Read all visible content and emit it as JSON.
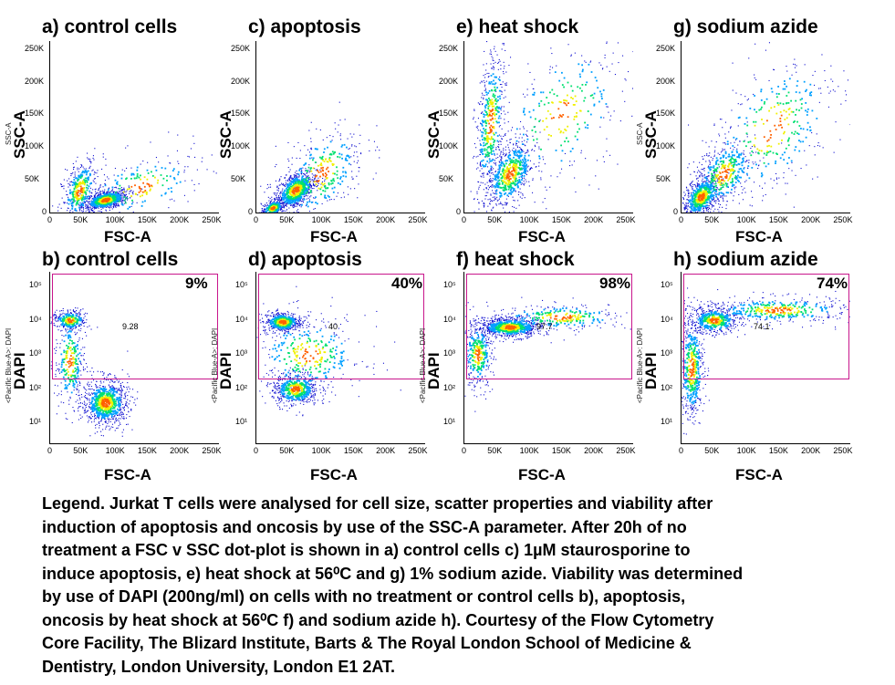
{
  "chart_data": [
    {
      "id": "a",
      "type": "scatter",
      "title": "a) control cells",
      "xlabel": "FSC-A",
      "ylabel": "SSC-A",
      "ylabel_small": "SSC-A",
      "xlim": [
        0,
        262144
      ],
      "ylim": [
        0,
        262144
      ],
      "x_ticks": [
        "0",
        "50K",
        "100K",
        "150K",
        "200K",
        "250K"
      ],
      "y_ticks": [
        "0",
        "50K",
        "100K",
        "150K",
        "200K",
        "250K"
      ],
      "populations": [
        {
          "x": 85000,
          "y": 20000,
          "sx": 18000,
          "sy": 7000,
          "weight": 0.6
        },
        {
          "x": 45000,
          "y": 35000,
          "sx": 14000,
          "sy": 22000,
          "weight": 0.25
        },
        {
          "x": 140000,
          "y": 40000,
          "sx": 50000,
          "sy": 25000,
          "weight": 0.15
        }
      ]
    },
    {
      "id": "c",
      "type": "scatter",
      "title": "c) apoptosis",
      "xlabel": "FSC-A",
      "ylabel": "SSC-A",
      "xlim": [
        0,
        262144
      ],
      "ylim": [
        0,
        262144
      ],
      "x_ticks": [
        "0",
        "50K",
        "100K",
        "150K",
        "200K",
        "250K"
      ],
      "y_ticks": [
        "0",
        "50K",
        "100K",
        "150K",
        "200K",
        "250K"
      ],
      "populations": [
        {
          "x": 60000,
          "y": 35000,
          "sx": 16000,
          "sy": 14000,
          "weight": 0.55
        },
        {
          "x": 25000,
          "y": 8000,
          "sx": 9000,
          "sy": 6000,
          "weight": 0.2
        },
        {
          "x": 100000,
          "y": 60000,
          "sx": 35000,
          "sy": 35000,
          "weight": 0.25
        }
      ]
    },
    {
      "id": "e",
      "type": "scatter",
      "title": "e) heat shock",
      "xlabel": "FSC-A",
      "ylabel": "SSC-A",
      "xlim": [
        0,
        262144
      ],
      "ylim": [
        0,
        262144
      ],
      "x_ticks": [
        "0",
        "50K",
        "100K",
        "150K",
        "200K",
        "250K"
      ],
      "y_ticks": [
        "0",
        "50K",
        "100K",
        "150K",
        "200K",
        "250K"
      ],
      "populations": [
        {
          "x": 70000,
          "y": 60000,
          "sx": 20000,
          "sy": 25000,
          "weight": 0.45
        },
        {
          "x": 40000,
          "y": 140000,
          "sx": 12000,
          "sy": 55000,
          "weight": 0.35
        },
        {
          "x": 150000,
          "y": 150000,
          "sx": 55000,
          "sy": 55000,
          "weight": 0.2
        }
      ]
    },
    {
      "id": "g",
      "type": "scatter",
      "title": "g) sodium azide",
      "xlabel": "FSC-A",
      "ylabel": "SSC-A",
      "ylabel_small": "SSC-A",
      "xlim": [
        0,
        262144
      ],
      "ylim": [
        0,
        262144
      ],
      "x_ticks": [
        "0",
        "50K",
        "100K",
        "150K",
        "200K",
        "250K"
      ],
      "y_ticks": [
        "0",
        "50K",
        "100K",
        "150K",
        "200K",
        "250K"
      ],
      "populations": [
        {
          "x": 30000,
          "y": 25000,
          "sx": 15000,
          "sy": 15000,
          "weight": 0.45
        },
        {
          "x": 65000,
          "y": 60000,
          "sx": 25000,
          "sy": 25000,
          "weight": 0.3
        },
        {
          "x": 140000,
          "y": 130000,
          "sx": 55000,
          "sy": 55000,
          "weight": 0.25
        }
      ]
    },
    {
      "id": "b",
      "type": "scatter",
      "title": "b) control cells",
      "xlabel": "FSC-A",
      "ylabel": "DAPI",
      "ylabel_small": "<Pacific Blue-A>: DAPI",
      "xlim": [
        0,
        262144
      ],
      "ylog": true,
      "x_ticks": [
        "0",
        "50K",
        "100K",
        "150K",
        "200K",
        "250K"
      ],
      "percent": "9%",
      "gate_value": "9.28",
      "populations": [
        {
          "x": 85000,
          "logy": 1.6,
          "sx": 18000,
          "sy": 0.35,
          "weight": 0.6
        },
        {
          "x": 30000,
          "logy": 4.0,
          "sx": 14000,
          "sy": 0.15,
          "weight": 0.2
        },
        {
          "x": 30000,
          "logy": 2.8,
          "sx": 12000,
          "sy": 0.7,
          "weight": 0.2
        }
      ]
    },
    {
      "id": "d",
      "type": "scatter",
      "title": "d) apoptosis",
      "xlabel": "FSC-A",
      "ylabel": "DAPI",
      "ylabel_small": "<Pacific Blue-A>: DAPI",
      "xlim": [
        0,
        262144
      ],
      "ylog": true,
      "x_ticks": [
        "0",
        "50K",
        "100K",
        "150K",
        "200K",
        "250K"
      ],
      "percent": "40%",
      "gate_value": "40",
      "populations": [
        {
          "x": 40000,
          "logy": 3.95,
          "sx": 15000,
          "sy": 0.15,
          "weight": 0.35
        },
        {
          "x": 60000,
          "logy": 2.0,
          "sx": 18000,
          "sy": 0.25,
          "weight": 0.4
        },
        {
          "x": 80000,
          "logy": 3.0,
          "sx": 45000,
          "sy": 0.6,
          "weight": 0.25
        }
      ]
    },
    {
      "id": "f",
      "type": "scatter",
      "title": "f) heat shock",
      "xlabel": "FSC-A",
      "ylabel": "DAPI",
      "ylabel_small": "<Pacific Blue-A>: DAPI",
      "xlim": [
        0,
        262144
      ],
      "ylog": true,
      "x_ticks": [
        "0",
        "50K",
        "100K",
        "150K",
        "200K",
        "250K"
      ],
      "percent": "98%",
      "gate_value": "97.7",
      "populations": [
        {
          "x": 70000,
          "logy": 3.8,
          "sx": 25000,
          "sy": 0.15,
          "weight": 0.55
        },
        {
          "x": 20000,
          "logy": 3.0,
          "sx": 12000,
          "sy": 0.5,
          "weight": 0.25
        },
        {
          "x": 150000,
          "logy": 4.1,
          "sx": 55000,
          "sy": 0.2,
          "weight": 0.2
        }
      ]
    },
    {
      "id": "h",
      "type": "scatter",
      "title": "h) sodium azide",
      "xlabel": "FSC-A",
      "ylabel": "DAPI",
      "ylabel_small": "<Pacific Blue-A>: DAPI",
      "xlim": [
        0,
        262144
      ],
      "ylog": true,
      "x_ticks": [
        "0",
        "50K",
        "100K",
        "150K",
        "200K",
        "250K"
      ],
      "percent": "74%",
      "gate_value": "74.1",
      "populations": [
        {
          "x": 50000,
          "logy": 4.0,
          "sx": 20000,
          "sy": 0.2,
          "weight": 0.35
        },
        {
          "x": 15000,
          "logy": 2.6,
          "sx": 10000,
          "sy": 0.8,
          "weight": 0.35
        },
        {
          "x": 150000,
          "logy": 4.3,
          "sx": 60000,
          "sy": 0.2,
          "weight": 0.3
        }
      ]
    }
  ],
  "log_y_ticks": [
    "10⁵",
    "10⁴",
    "10³",
    "10²",
    "10¹"
  ],
  "legend_lines": [
    "Legend. Jurkat T cells were analysed for cell size, scatter properties and viability after",
    "induction of apoptosis and oncosis by use of the SSC-A parameter. After 20h of no",
    "treatment a FSC v SSC dot-plot is shown in a) control cells c) 1µM staurosporine to",
    "induce apoptosis, e) heat shock at 56⁰C and g) 1% sodium azide. Viability was determined",
    "by use of DAPI (200ng/ml) on cells with no treatment or control cells b), apoptosis,",
    "oncosis by heat shock at 56⁰C f) and sodium azide h). Courtesy of the Flow Cytometry",
    "Core Facility,  The Blizard Institute, Barts & The Royal London School of Medicine &",
    "Dentistry, London University,  London E1 2AT."
  ],
  "colors": {
    "gate": "#c8168c",
    "density": [
      "#1010d0",
      "#00a0ff",
      "#00e070",
      "#f0f000",
      "#ff6000",
      "#d00000"
    ]
  }
}
